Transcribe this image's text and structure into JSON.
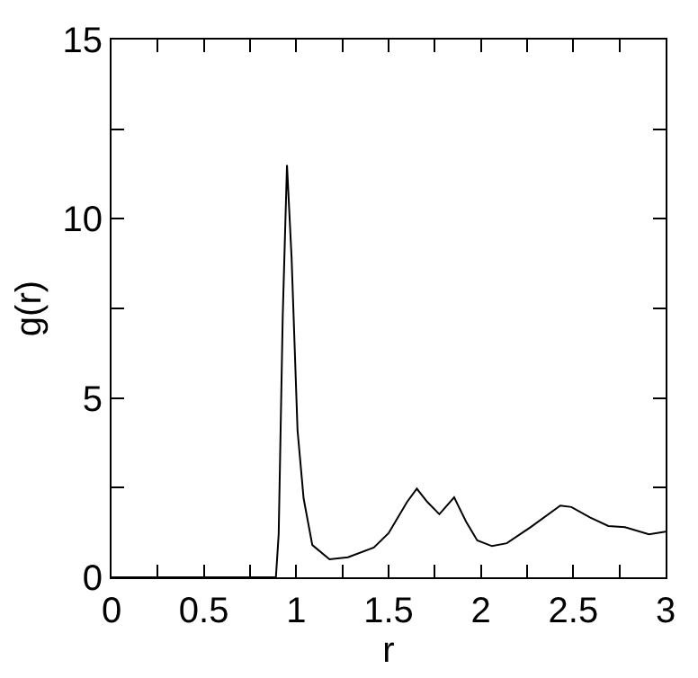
{
  "chart_data": {
    "type": "line",
    "xlabel": "r",
    "ylabel": "g(r)",
    "x": [
      0,
      0.85,
      0.89,
      0.905,
      0.927,
      0.95,
      0.975,
      1.007,
      1.04,
      1.087,
      1.18,
      1.28,
      1.42,
      1.5,
      1.6,
      1.653,
      1.71,
      1.775,
      1.855,
      1.92,
      1.98,
      2.06,
      2.14,
      2.27,
      2.43,
      2.49,
      2.59,
      2.69,
      2.78,
      2.91,
      3.0
    ],
    "series": [
      {
        "color": "#000000",
        "values": [
          0,
          0,
          0,
          1.2,
          7.3,
          11.5,
          8.9,
          4.1,
          2.2,
          0.9,
          0.5,
          0.56,
          0.83,
          1.23,
          2.1,
          2.47,
          2.1,
          1.76,
          2.23,
          1.55,
          1.03,
          0.87,
          0.95,
          1.4,
          2.0,
          1.96,
          1.67,
          1.43,
          1.4,
          1.2,
          1.27
        ]
      }
    ],
    "xlim": [
      0,
      3
    ],
    "ylim": [
      0,
      15
    ],
    "xticks": [
      0,
      {
        "value": 0.25,
        "label": null
      },
      0.5,
      {
        "value": 0.75,
        "label": null
      },
      1,
      {
        "value": 1.25,
        "label": null
      },
      1.5,
      {
        "value": 1.75,
        "label": null
      },
      2,
      {
        "value": 2.25,
        "label": null
      },
      2.5,
      {
        "value": 2.75,
        "label": null
      },
      3
    ],
    "yticks": [
      0,
      {
        "value": 2.5,
        "label": null
      },
      5,
      {
        "value": 7.5,
        "label": null
      },
      10,
      {
        "value": 12.5,
        "label": null
      },
      15
    ],
    "marker": "none",
    "line_style": "solid"
  }
}
